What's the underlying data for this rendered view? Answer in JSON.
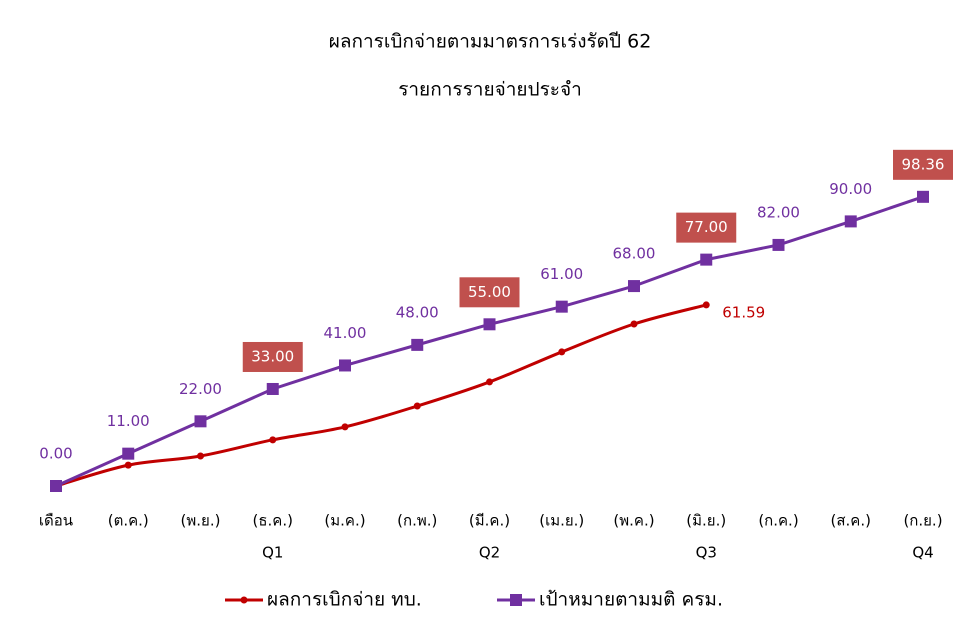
{
  "chart_data": {
    "type": "line",
    "title": "ผลการเบิกจ่ายตามมาตรการเร่งรัดปี 62",
    "subtitle": "รายการรายจ่ายประจำ",
    "categories": [
      "เดือน",
      "(ต.ค.)",
      "(พ.ย.)",
      "(ธ.ค.)",
      "(ม.ค.)",
      "(ก.พ.)",
      "(มี.ค.)",
      "(เม.ย.)",
      "(พ.ค.)",
      "(มิ.ย.)",
      "(ก.ค.)",
      "(ส.ค.)",
      "(ก.ย.)"
    ],
    "quarters": [
      null,
      null,
      null,
      "Q1",
      null,
      null,
      "Q2",
      null,
      null,
      "Q3",
      null,
      null,
      "Q4"
    ],
    "ylim": [
      0,
      100
    ],
    "label_box_color": "#c0504d",
    "series": [
      {
        "name": "ผลการเบิกจ่าย ทบ.",
        "color": "#c00000",
        "marker": "circle",
        "smooth": true,
        "values": [
          0,
          7.1,
          10.2,
          15.7,
          20.1,
          27.2,
          35.4,
          45.6,
          55.1,
          61.59,
          null,
          null,
          null
        ],
        "value_labels": [
          null,
          null,
          null,
          null,
          null,
          null,
          null,
          null,
          null,
          "61.59",
          null,
          null,
          null
        ]
      },
      {
        "name": "เป้าหมายตามมติ ครม.",
        "color": "#7030a0",
        "marker": "square",
        "smooth": false,
        "values": [
          0,
          11,
          22,
          33,
          41,
          48,
          55,
          61,
          68,
          77,
          82,
          90,
          98.36
        ],
        "value_labels": [
          "0.00",
          "11.00",
          "22.00",
          "33.00",
          "41.00",
          "48.00",
          "55.00",
          "61.00",
          "68.00",
          "77.00",
          "82.00",
          "90.00",
          "98.36"
        ]
      }
    ]
  }
}
